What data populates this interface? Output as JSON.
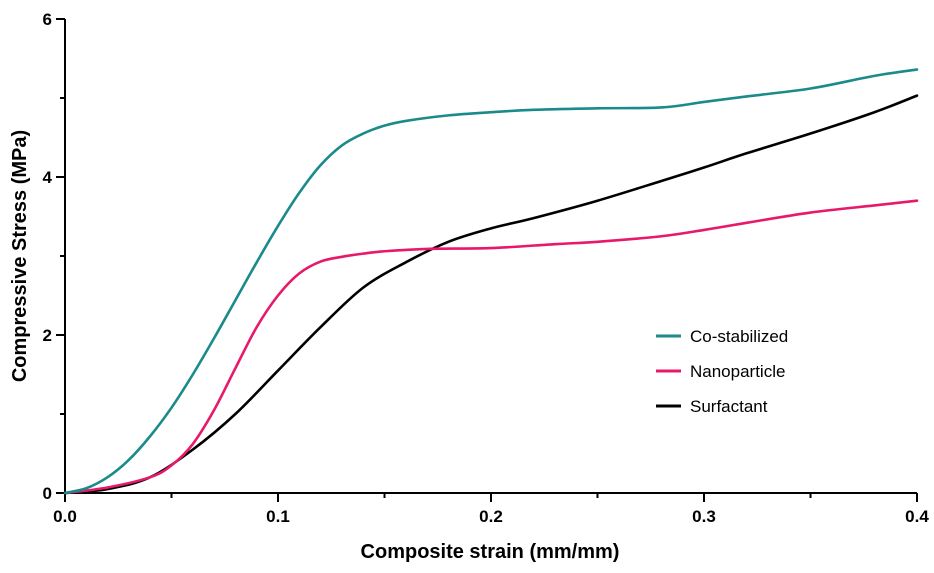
{
  "chart_data": {
    "type": "line",
    "title": "",
    "xlabel": "Composite strain (mm/mm)",
    "ylabel": "Compressive  Stress (MPa)",
    "xlim": [
      0.0,
      0.4
    ],
    "ylim": [
      0,
      6
    ],
    "x_ticks": [
      "0.0",
      "0.1",
      "0.2",
      "0.3",
      "0.4"
    ],
    "y_ticks": [
      "0",
      "2",
      "4",
      "6"
    ],
    "grid": false,
    "legend_position": "center-right",
    "series": [
      {
        "name": "Co-stabilized",
        "color": "#1b8a8a",
        "points": [
          [
            0,
            0
          ],
          [
            0.01,
            0.06
          ],
          [
            0.02,
            0.2
          ],
          [
            0.03,
            0.42
          ],
          [
            0.04,
            0.72
          ],
          [
            0.05,
            1.08
          ],
          [
            0.06,
            1.5
          ],
          [
            0.07,
            1.96
          ],
          [
            0.08,
            2.44
          ],
          [
            0.09,
            2.92
          ],
          [
            0.1,
            3.38
          ],
          [
            0.11,
            3.8
          ],
          [
            0.12,
            4.15
          ],
          [
            0.13,
            4.4
          ],
          [
            0.14,
            4.55
          ],
          [
            0.15,
            4.65
          ],
          [
            0.16,
            4.71
          ],
          [
            0.18,
            4.78
          ],
          [
            0.2,
            4.82
          ],
          [
            0.22,
            4.85
          ],
          [
            0.25,
            4.87
          ],
          [
            0.28,
            4.88
          ],
          [
            0.3,
            4.95
          ],
          [
            0.32,
            5.02
          ],
          [
            0.35,
            5.12
          ],
          [
            0.38,
            5.28
          ],
          [
            0.4,
            5.36
          ]
        ]
      },
      {
        "name": "Nanoparticle",
        "color": "#e8186a",
        "points": [
          [
            0,
            0
          ],
          [
            0.02,
            0.07
          ],
          [
            0.04,
            0.2
          ],
          [
            0.05,
            0.35
          ],
          [
            0.06,
            0.62
          ],
          [
            0.07,
            1.05
          ],
          [
            0.08,
            1.58
          ],
          [
            0.09,
            2.1
          ],
          [
            0.1,
            2.5
          ],
          [
            0.11,
            2.78
          ],
          [
            0.12,
            2.93
          ],
          [
            0.13,
            2.99
          ],
          [
            0.14,
            3.03
          ],
          [
            0.15,
            3.06
          ],
          [
            0.17,
            3.09
          ],
          [
            0.2,
            3.1
          ],
          [
            0.23,
            3.15
          ],
          [
            0.25,
            3.18
          ],
          [
            0.28,
            3.25
          ],
          [
            0.3,
            3.33
          ],
          [
            0.32,
            3.42
          ],
          [
            0.35,
            3.55
          ],
          [
            0.38,
            3.64
          ],
          [
            0.4,
            3.7
          ]
        ]
      },
      {
        "name": "Surfactant",
        "color": "#000000",
        "points": [
          [
            0,
            0
          ],
          [
            0.02,
            0.05
          ],
          [
            0.04,
            0.2
          ],
          [
            0.06,
            0.55
          ],
          [
            0.08,
            1.0
          ],
          [
            0.1,
            1.55
          ],
          [
            0.12,
            2.1
          ],
          [
            0.14,
            2.6
          ],
          [
            0.16,
            2.92
          ],
          [
            0.18,
            3.18
          ],
          [
            0.2,
            3.35
          ],
          [
            0.22,
            3.48
          ],
          [
            0.25,
            3.7
          ],
          [
            0.28,
            3.95
          ],
          [
            0.3,
            4.12
          ],
          [
            0.32,
            4.3
          ],
          [
            0.35,
            4.55
          ],
          [
            0.38,
            4.82
          ],
          [
            0.4,
            5.03
          ]
        ]
      }
    ]
  }
}
